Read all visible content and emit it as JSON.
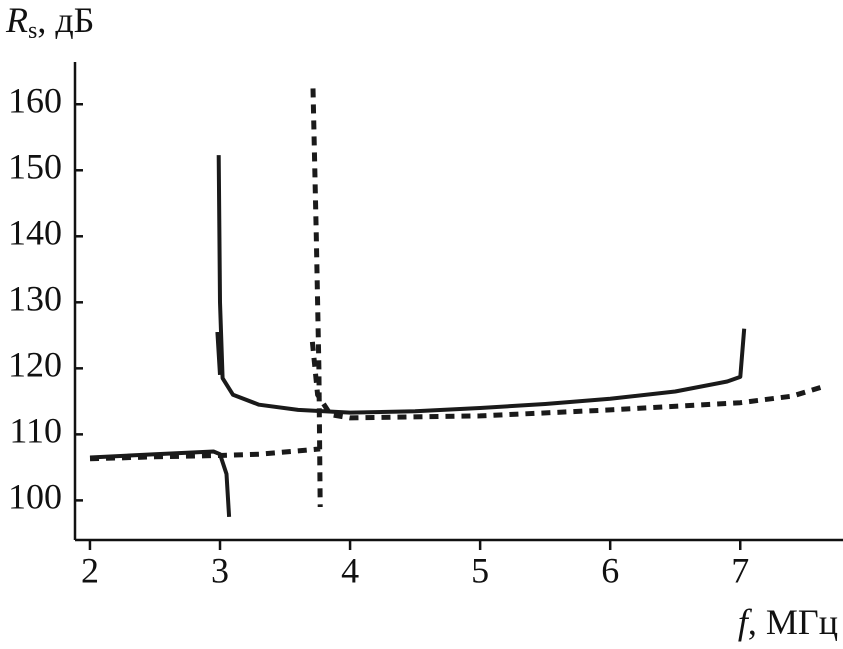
{
  "chart_data": {
    "type": "line",
    "ylabel_symbol": "R",
    "ylabel_subscript": "s",
    "ylabel_unit": ", дБ",
    "xlabel_symbol": "f",
    "xlabel_unit": ", МГц",
    "xlim": [
      1.885,
      7.79
    ],
    "ylim": [
      94,
      166.4
    ],
    "xticks": [
      2,
      3,
      4,
      5,
      6,
      7
    ],
    "yticks": [
      100,
      110,
      120,
      130,
      140,
      150,
      160
    ],
    "grid": false,
    "series": [
      {
        "color": "#1a1a1a",
        "style": "solid",
        "x": [
          2.0,
          2.5,
          2.95,
          3.0,
          3.05,
          3.07,
          null,
          2.98,
          3.0,
          null,
          2.99,
          3.0,
          3.02,
          3.1,
          3.3,
          3.6,
          4.0,
          4.5,
          5.0,
          5.5,
          6.0,
          6.5,
          6.9,
          7.0,
          7.03
        ],
        "values": [
          106.5,
          107.0,
          107.4,
          107.0,
          104,
          97.5,
          null,
          125.5,
          119,
          null,
          152.3,
          130,
          118.5,
          116,
          114.5,
          113.7,
          113.3,
          113.5,
          114.0,
          114.6,
          115.4,
          116.5,
          118,
          118.7,
          126
        ]
      },
      {
        "color": "#1a1a1a",
        "style": "dashed",
        "x": [
          2.0,
          2.5,
          3.0,
          3.3,
          3.6,
          3.77,
          null,
          3.715,
          3.74,
          3.76,
          3.77,
          null,
          3.71,
          3.75,
          3.85,
          4.0,
          5.0,
          6.0,
          7.0,
          7.4,
          7.65
        ],
        "values": [
          106.3,
          106.6,
          106.8,
          107.0,
          107.5,
          107.8,
          null,
          162.4,
          140,
          120,
          99,
          null,
          124,
          116,
          113,
          112.5,
          112.8,
          113.7,
          114.8,
          115.8,
          117.3
        ]
      }
    ]
  }
}
